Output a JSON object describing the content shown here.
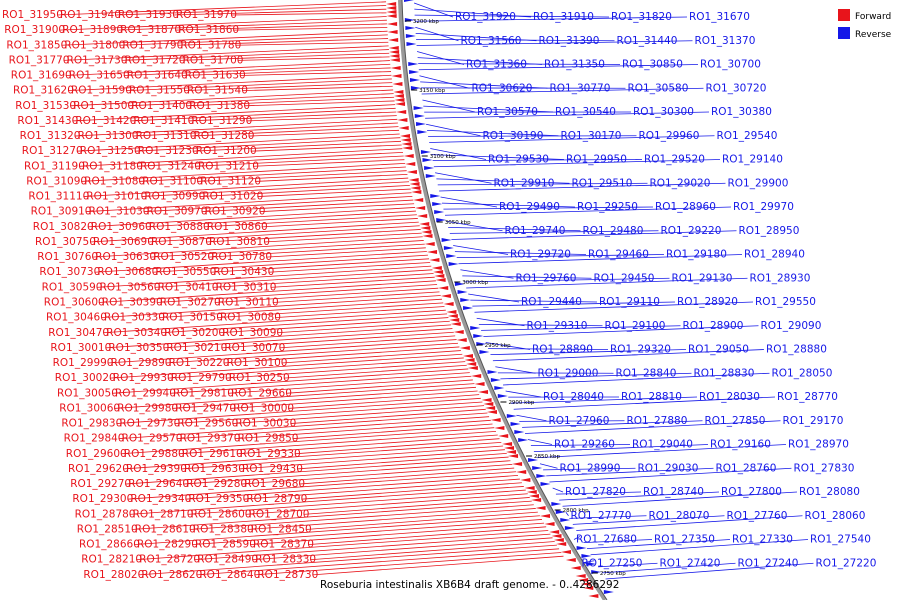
{
  "title": "Roseburia intestinalis XB6B4 draft genome. - 0..4286292",
  "legend": {
    "forward": {
      "label": "Forward",
      "color": "#e8141b"
    },
    "reverse": {
      "label": "Reverse",
      "color": "#1518e8"
    }
  },
  "colors": {
    "backbone": "#888888",
    "line_forward": "#e8141b",
    "line_reverse": "#1518e8"
  },
  "ticks": [
    "3200 kbp",
    "3150 kbp",
    "3100 kbp",
    "3050 kbp",
    "3000 kbp",
    "2950 kbp",
    "2900 kbp",
    "2850 kbp",
    "2800 kbp",
    "2750 kbp"
  ],
  "forward_labels": [
    "RO1_31950",
    "RO1_31940",
    "RO1_31930",
    "RO1_31970",
    "RO1_31900",
    "RO1_31890",
    "RO1_31870",
    "RO1_31860",
    "RO1_31850",
    "RO1_31800",
    "RO1_31790",
    "RO1_31780",
    "RO1_31770",
    "RO1_31730",
    "RO1_31720",
    "RO1_31700",
    "RO1_31690",
    "RO1_31650",
    "RO1_31640",
    "RO1_31630",
    "RO1_31620",
    "RO1_31590",
    "RO1_31550",
    "RO1_31540",
    "RO1_31530",
    "RO1_31500",
    "RO1_31400",
    "RO1_31380",
    "RO1_31430",
    "RO1_31420",
    "RO1_31410",
    "RO1_31290",
    "RO1_31320",
    "RO1_31300",
    "RO1_31310",
    "RO1_31280",
    "RO1_31270",
    "RO1_31250",
    "RO1_31230",
    "RO1_31200",
    "RO1_31190",
    "RO1_31180",
    "RO1_31240",
    "RO1_31210",
    "RO1_31090",
    "RO1_31080",
    "RO1_31100",
    "RO1_31120",
    "RO1_31110",
    "RO1_31010",
    "RO1_30990",
    "RO1_31020",
    "RO1_30910",
    "RO1_31030",
    "RO1_30970",
    "RO1_30920",
    "RO1_30820",
    "RO1_30960",
    "RO1_30880",
    "RO1_30860",
    "RO1_30750",
    "RO1_30690",
    "RO1_30870",
    "RO1_30810",
    "RO1_30760",
    "RO1_30630",
    "RO1_30520",
    "RO1_30780",
    "RO1_30730",
    "RO1_30680",
    "RO1_30550",
    "RO1_30430",
    "RO1_30590",
    "RO1_30560",
    "RO1_30410",
    "RO1_30310",
    "RO1_30600",
    "RO1_30390",
    "RO1_30270",
    "RO1_30110",
    "RO1_30460",
    "RO1_30330",
    "RO1_30150",
    "RO1_30080",
    "RO1_30470",
    "RO1_30340",
    "RO1_30200",
    "RO1_30090",
    "RO1_30010",
    "RO1_30350",
    "RO1_30210",
    "RO1_30070",
    "RO1_29990",
    "RO1_29890",
    "RO1_30220",
    "RO1_30100",
    "RO1_30020",
    "RO1_29930",
    "RO1_29790",
    "RO1_30250",
    "RO1_30050",
    "RO1_29940",
    "RO1_29810",
    "RO1_29660",
    "RO1_30060",
    "RO1_29980",
    "RO1_29470",
    "RO1_30000",
    "RO1_29830",
    "RO1_29730",
    "RO1_29560",
    "RO1_30030",
    "RO1_29840",
    "RO1_29570",
    "RO1_29370",
    "RO1_29850",
    "RO1_29600",
    "RO1_29880",
    "RO1_29610",
    "RO1_29330",
    "RO1_29620",
    "RO1_29390",
    "RO1_29630",
    "RO1_29430",
    "RO1_29270",
    "RO1_29640",
    "RO1_29280",
    "RO1_29680",
    "RO1_29300",
    "RO1_29340",
    "RO1_29350",
    "RO1_28790",
    "RO1_28780",
    "RO1_28710",
    "RO1_28600",
    "RO1_28700",
    "RO1_28510",
    "RO1_28610",
    "RO1_28380",
    "RO1_28450",
    "RO1_28660",
    "RO1_28290",
    "RO1_28590",
    "RO1_28370",
    "RO1_28210",
    "RO1_28720",
    "RO1_28490",
    "RO1_28330",
    "RO1_28020",
    "RO1_28620",
    "RO1_28640",
    "RO1_28730"
  ],
  "reverse_labels": [
    "RO1_31920",
    "RO1_31910",
    "RO1_31820",
    "RO1_31670",
    "RO1_31560",
    "RO1_31390",
    "RO1_31440",
    "RO1_31370",
    "RO1_31360",
    "RO1_31350",
    "RO1_30850",
    "RO1_30700",
    "RO1_30620",
    "RO1_30770",
    "RO1_30580",
    "RO1_30720",
    "RO1_30570",
    "RO1_30540",
    "RO1_30300",
    "RO1_30380",
    "RO1_30190",
    "RO1_30170",
    "RO1_29960",
    "RO1_29540",
    "RO1_29530",
    "RO1_29950",
    "RO1_29520",
    "RO1_29140",
    "RO1_29910",
    "RO1_29510",
    "RO1_29020",
    "RO1_29900",
    "RO1_29490",
    "RO1_29250",
    "RO1_28960",
    "RO1_29970",
    "RO1_29740",
    "RO1_29480",
    "RO1_29220",
    "RO1_28950",
    "RO1_29720",
    "RO1_29460",
    "RO1_29180",
    "RO1_28940",
    "RO1_29760",
    "RO1_29450",
    "RO1_29130",
    "RO1_28930",
    "RO1_29440",
    "RO1_29110",
    "RO1_28920",
    "RO1_29550",
    "RO1_29310",
    "RO1_29100",
    "RO1_28900",
    "RO1_29090",
    "RO1_28890",
    "RO1_29320",
    "RO1_29050",
    "RO1_28880",
    "RO1_29000",
    "RO1_28840",
    "RO1_28830",
    "RO1_28050",
    "RO1_28040",
    "RO1_28810",
    "RO1_28030",
    "RO1_28770",
    "RO1_27960",
    "RO1_27880",
    "RO1_27850",
    "RO1_29170",
    "RO1_29260",
    "RO1_29040",
    "RO1_29160",
    "RO1_28970",
    "RO1_28990",
    "RO1_29030",
    "RO1_28760",
    "RO1_27830",
    "RO1_27820",
    "RO1_28740",
    "RO1_27800",
    "RO1_28080",
    "RO1_27770",
    "RO1_28070",
    "RO1_27760",
    "RO1_28060",
    "RO1_27680",
    "RO1_27350",
    "RO1_27330",
    "RO1_27540",
    "RO1_27250",
    "RO1_27420",
    "RO1_27240",
    "RO1_27220"
  ]
}
